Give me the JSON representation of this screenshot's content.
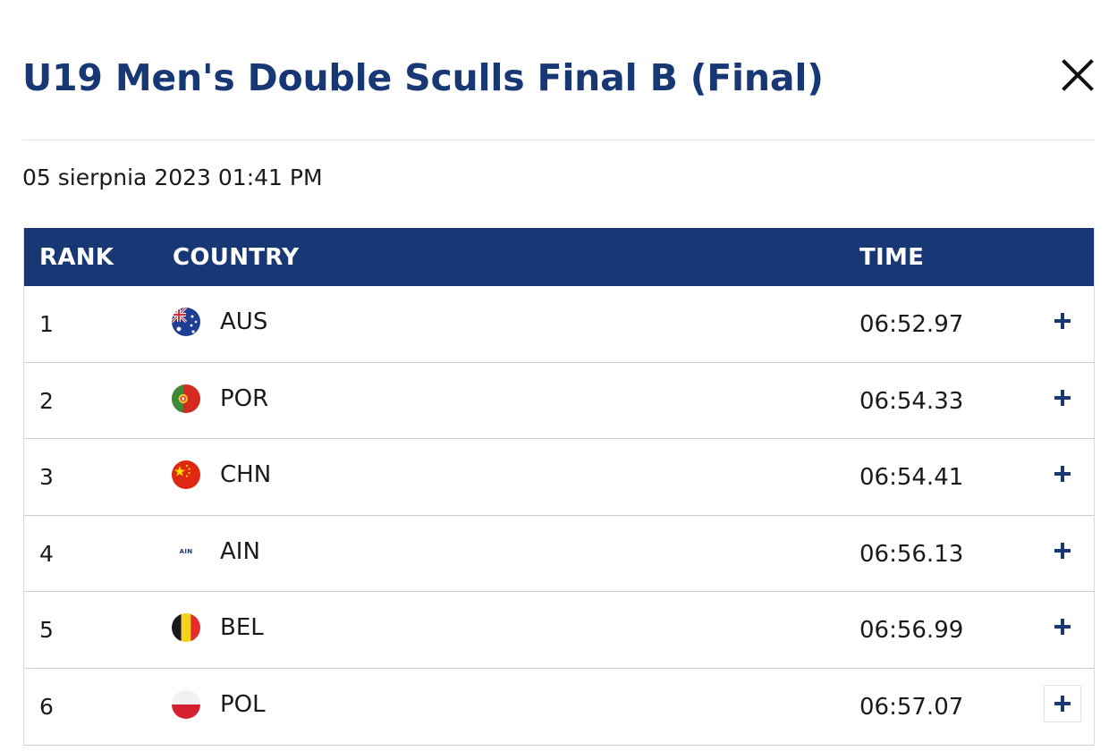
{
  "header": {
    "title": "U19 Men's Double Sculls Final B (Final)",
    "close_icon": "close-icon"
  },
  "datetime": "05 sierpnia 2023 01:41 PM",
  "table": {
    "columns": {
      "rank": "RANK",
      "country": "COUNTRY",
      "time": "TIME"
    },
    "rows": [
      {
        "rank": "1",
        "flag": "flag-aus-icon",
        "country": "AUS",
        "time": "06:52.97"
      },
      {
        "rank": "2",
        "flag": "flag-por-icon",
        "country": "POR",
        "time": "06:54.33"
      },
      {
        "rank": "3",
        "flag": "flag-chn-icon",
        "country": "CHN",
        "time": "06:54.41"
      },
      {
        "rank": "4",
        "flag": "flag-ain-icon",
        "flag_text": "AIN",
        "country": "AIN",
        "time": "06:56.13"
      },
      {
        "rank": "5",
        "flag": "flag-bel-icon",
        "country": "BEL",
        "time": "06:56.99"
      },
      {
        "rank": "6",
        "flag": "flag-pol-icon",
        "country": "POL",
        "time": "06:57.07"
      }
    ],
    "expand_icon": "plus-icon"
  },
  "colors": {
    "brand": "#173775",
    "header_bg": "#173775",
    "row_border": "#c8ced6"
  }
}
